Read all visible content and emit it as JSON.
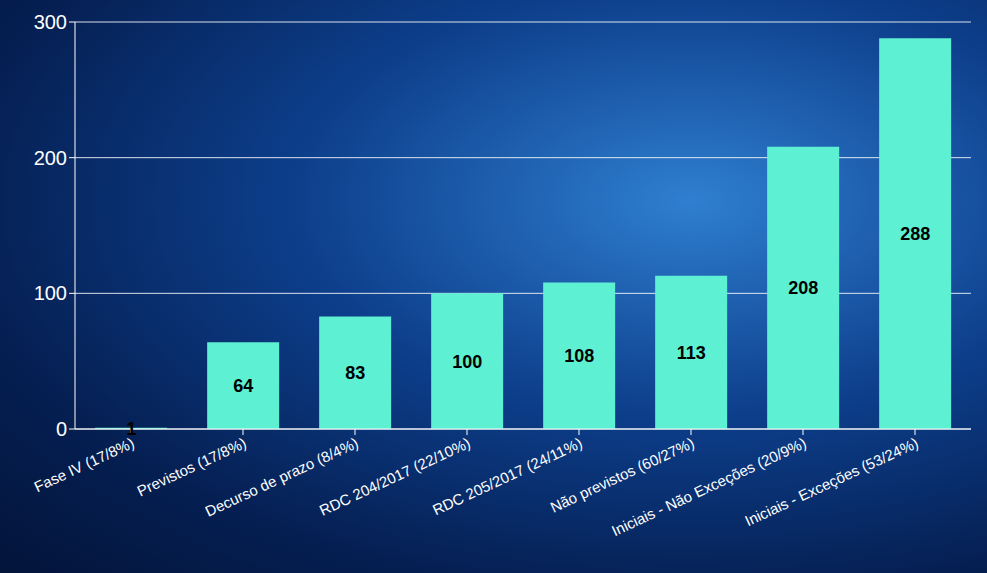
{
  "chart_data": {
    "type": "bar",
    "categories": [
      "Fase IV (17/8%)",
      "Previstos (17/8%)",
      "Decurso de prazo (8/4%)",
      "RDC 204/2017 (22/10%)",
      "RDC 205/2017 (24/11%)",
      "Não previstos (60/27%)",
      "Iniciais - Não Exceções (20/9%)",
      "Iniciais - Exceções (53/24%)"
    ],
    "values": [
      1,
      64,
      83,
      100,
      108,
      113,
      208,
      288
    ],
    "color": "#5ef0d2",
    "ylim": [
      0,
      300
    ],
    "yticks": [
      0,
      100,
      200,
      300
    ],
    "grid": true,
    "data_labels": true
  }
}
